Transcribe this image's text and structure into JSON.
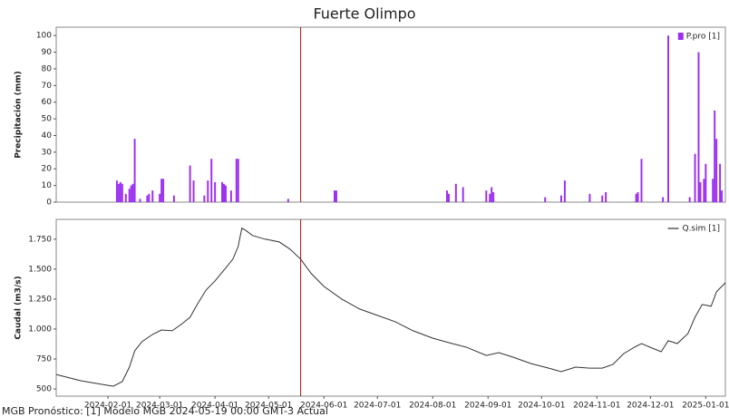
{
  "title": "Fuerte Olimpo",
  "footer": "MGB Pronóstico: [1] Modelo MGB 2024-05-19 00:00 GMT-3 Actual",
  "chart_data": [
    {
      "type": "bar",
      "y_label": "Precipitación (mm)",
      "legend": "upper right",
      "marker_x": "2024-05-19",
      "marker_color": "#a01010",
      "xlim": [
        "2024-01-03",
        "2025-01-12"
      ],
      "ylim": [
        0,
        105
      ],
      "yticks": [
        0,
        10,
        20,
        30,
        40,
        50,
        60,
        70,
        80,
        90,
        100
      ],
      "series": [
        {
          "name": "P.pro [1]",
          "color": "#9b30f0",
          "x": [
            "2024-02-06",
            "2024-02-07",
            "2024-02-08",
            "2024-02-09",
            "2024-02-11",
            "2024-02-13",
            "2024-02-14",
            "2024-02-15",
            "2024-02-16",
            "2024-02-19",
            "2024-02-23",
            "2024-02-24",
            "2024-02-26",
            "2024-03-01",
            "2024-03-02",
            "2024-03-03",
            "2024-03-09",
            "2024-03-18",
            "2024-03-20",
            "2024-03-26",
            "2024-03-28",
            "2024-03-30",
            "2024-04-01",
            "2024-04-05",
            "2024-04-06",
            "2024-04-07",
            "2024-04-10",
            "2024-04-13",
            "2024-04-14",
            "2024-05-12",
            "2024-06-07",
            "2024-06-08",
            "2024-08-09",
            "2024-08-10",
            "2024-08-14",
            "2024-08-18",
            "2024-08-31",
            "2024-09-02",
            "2024-09-03",
            "2024-09-04",
            "2024-10-03",
            "2024-10-12",
            "2024-10-14",
            "2024-10-28",
            "2024-11-04",
            "2024-11-06",
            "2024-11-23",
            "2024-11-24",
            "2024-11-26",
            "2024-12-08",
            "2024-12-11",
            "2024-12-23",
            "2024-12-26",
            "2024-12-28",
            "2024-12-29",
            "2024-12-31",
            "2025-01-01",
            "2025-01-05",
            "2025-01-06",
            "2025-01-07",
            "2025-01-09",
            "2025-01-10"
          ],
          "values": [
            13,
            11,
            12,
            11,
            5,
            8,
            10,
            11,
            38,
            2,
            4,
            5,
            7,
            5,
            14,
            14,
            4,
            22,
            13,
            4,
            13,
            26,
            12,
            12,
            11,
            10,
            7,
            26,
            26,
            2,
            7,
            7,
            7,
            5,
            11,
            9,
            7,
            5,
            9,
            6,
            3,
            4,
            13,
            5,
            4,
            6,
            5,
            6,
            26,
            3,
            100,
            3,
            29,
            90,
            12,
            14,
            23,
            14,
            55,
            38,
            23,
            7
          ]
        }
      ]
    },
    {
      "type": "line",
      "y_label": "Caudal (m3/s)",
      "legend": "upper right",
      "marker_x": "2024-05-19",
      "marker_color": "#a01010",
      "xlim": [
        "2024-01-03",
        "2025-01-12"
      ],
      "ylim": [
        440,
        1915
      ],
      "xticks": [
        "2024-02-01",
        "2024-03-01",
        "2024-04-01",
        "2024-05-01",
        "2024-06-01",
        "2024-07-01",
        "2024-08-01",
        "2024-09-01",
        "2024-10-01",
        "2024-11-01",
        "2024-12-01",
        "2025-01-01"
      ],
      "yticks": [
        500,
        750,
        {
          "value": 1000,
          "label": "1.000"
        },
        {
          "value": 1250,
          "label": "1.250"
        },
        {
          "value": 1500,
          "label": "1.500"
        },
        {
          "value": 1750,
          "label": "1.750"
        }
      ],
      "series": [
        {
          "name": "Q.sim [1]",
          "color": "#333333",
          "x": [
            "2024-01-03",
            "2024-01-17",
            "2024-02-01",
            "2024-02-04",
            "2024-02-09",
            "2024-02-13",
            "2024-02-16",
            "2024-02-20",
            "2024-02-26",
            "2024-03-02",
            "2024-03-08",
            "2024-03-13",
            "2024-03-18",
            "2024-03-22",
            "2024-03-27",
            "2024-04-01",
            "2024-04-06",
            "2024-04-11",
            "2024-04-14",
            "2024-04-16",
            "2024-04-18",
            "2024-04-22",
            "2024-04-29",
            "2024-05-07",
            "2024-05-13",
            "2024-05-19",
            "2024-05-25",
            "2024-06-01",
            "2024-06-11",
            "2024-06-21",
            "2024-07-01",
            "2024-07-11",
            "2024-07-21",
            "2024-08-01",
            "2024-08-10",
            "2024-08-20",
            "2024-08-31",
            "2024-09-07",
            "2024-09-15",
            "2024-09-25",
            "2024-10-05",
            "2024-10-12",
            "2024-10-20",
            "2024-10-28",
            "2024-11-04",
            "2024-11-10",
            "2024-11-16",
            "2024-11-23",
            "2024-11-26",
            "2024-12-02",
            "2024-12-07",
            "2024-12-11",
            "2024-12-16",
            "2024-12-22",
            "2024-12-26",
            "2024-12-30",
            "2025-01-04",
            "2025-01-07",
            "2025-01-12"
          ],
          "values": [
            621,
            568,
            530,
            523,
            561,
            682,
            818,
            894,
            955,
            992,
            985,
            1038,
            1098,
            1205,
            1326,
            1402,
            1492,
            1583,
            1689,
            1841,
            1826,
            1780,
            1750,
            1727,
            1667,
            1583,
            1462,
            1356,
            1250,
            1167,
            1114,
            1061,
            985,
            924,
            886,
            848,
            780,
            803,
            765,
            712,
            674,
            644,
            682,
            674,
            674,
            705,
            795,
            856,
            879,
            841,
            811,
            902,
            879,
            962,
            1098,
            1205,
            1190,
            1311,
            1386
          ]
        }
      ]
    }
  ]
}
